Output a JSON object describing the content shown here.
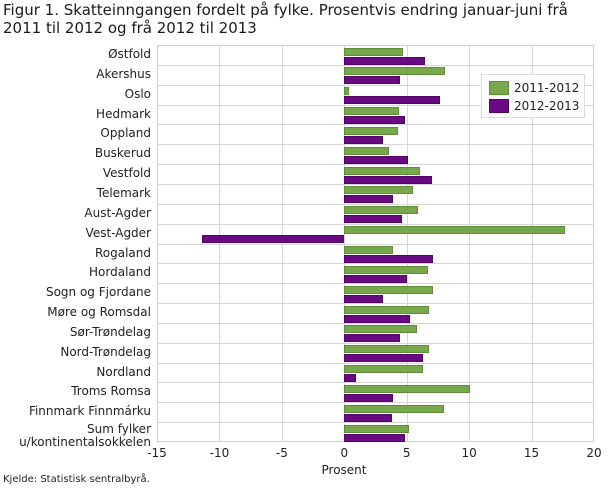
{
  "title": "Figur 1. Skatteinngangen fordelt på fylke. Prosentvis endring januar-juni frå 2011 til 2012 og frå 2012 til 2013",
  "source": "Kjelde: Statistisk sentralbyrå.",
  "colors": {
    "series_2011_2012": "#78a84c",
    "series_2012_2013": "#6a0a82"
  },
  "chart_data": {
    "type": "bar",
    "orientation": "horizontal",
    "title": "Figur 1. Skatteinngangen fordelt på fylke. Prosentvis endring januar-juni frå 2011 til 2012 og frå 2012 til 2013",
    "xlabel": "Prosent",
    "ylabel": "",
    "xlim": [
      -15,
      20
    ],
    "xticks": [
      "-15",
      "-10",
      "-5",
      "0",
      "5",
      "10",
      "15",
      "20"
    ],
    "grid": true,
    "legend_position": "upper right (inside)",
    "categories": [
      "Østfold",
      "Akershus",
      "Oslo",
      "Hedmark",
      "Oppland",
      "Buskerud",
      "Vestfold",
      "Telemark",
      "Aust-Agder",
      "Vest-Agder",
      "Rogaland",
      "Hordaland",
      "Sogn og Fjordane",
      "Møre og Romsdal",
      "Sør-Trøndelag",
      "Nord-Trøndelag",
      "Nordland",
      "Troms Romsa",
      "Finnmark Finnmárku",
      "Sum fylker u/kontinentalsokkelen"
    ],
    "series": [
      {
        "name": "2011-2012",
        "values": [
          4.7,
          8.1,
          0.35,
          4.4,
          4.3,
          3.6,
          6.1,
          5.5,
          5.9,
          17.7,
          3.9,
          6.7,
          7.1,
          6.8,
          5.8,
          6.8,
          6.3,
          10.1,
          8.0,
          5.2
        ]
      },
      {
        "name": "2012-2013",
        "values": [
          6.5,
          4.5,
          7.7,
          4.9,
          3.1,
          5.1,
          7.0,
          3.9,
          4.6,
          -11.4,
          7.1,
          5.0,
          3.1,
          5.3,
          4.5,
          6.3,
          0.9,
          3.9,
          3.8,
          4.9
        ]
      }
    ]
  }
}
